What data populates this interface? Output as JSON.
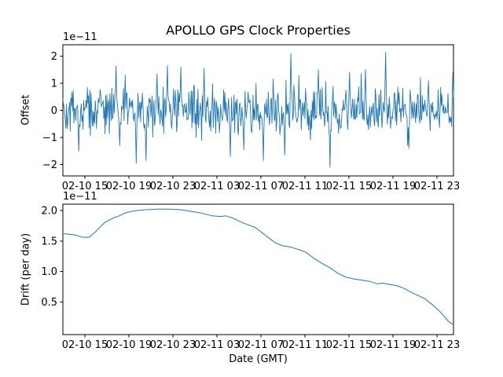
{
  "figure": {
    "background": "#ffffff",
    "line_color": "#1f77b4",
    "axis_color": "#000000"
  },
  "chart_data": [
    {
      "type": "line",
      "name": "offset",
      "title": "APOLLO GPS Clock Properties",
      "ylabel": "Offset",
      "scale_text": "1e−11",
      "grid": false,
      "legend": "none",
      "x_range": [
        13.0,
        48.5
      ],
      "y_range": [
        -2.42,
        2.42
      ],
      "y_tick_values": [
        2,
        1,
        0,
        -1,
        -2
      ],
      "y_tick_labels": [
        "2",
        "1",
        "0",
        "−1",
        "−2"
      ],
      "x_tick_values": [
        15,
        19,
        23,
        27,
        31,
        35,
        39,
        43,
        47
      ],
      "x_tick_labels": [
        "02-10 15",
        "02-10 19",
        "02-10 23",
        "02-11 03",
        "02-11 07",
        "02-11 11",
        "02-11 15",
        "02-11 19",
        "02-11 23"
      ],
      "noise": {
        "n": 640,
        "sigma": 0.43,
        "tail_prob": 0.05,
        "tail_mult": 2.0,
        "clamp": 1.75,
        "seed": 42
      },
      "spikes": [
        [
          14.43,
          -1.5
        ],
        [
          17.86,
          1.63
        ],
        [
          18.14,
          -1.3
        ],
        [
          19.64,
          -1.94
        ],
        [
          20.57,
          -1.85
        ],
        [
          21.57,
          1.35
        ],
        [
          22.5,
          1.65
        ],
        [
          23.71,
          1.6
        ],
        [
          25.86,
          1.55
        ],
        [
          28.21,
          -1.7
        ],
        [
          29.43,
          -1.45
        ],
        [
          31.21,
          -1.85
        ],
        [
          33.14,
          -1.65
        ],
        [
          33.71,
          2.1
        ],
        [
          36.21,
          1.5
        ],
        [
          37.29,
          -2.1
        ],
        [
          39.07,
          1.4
        ],
        [
          40.5,
          1.5
        ],
        [
          42.36,
          2.15
        ],
        [
          44.43,
          -1.4
        ],
        [
          46.21,
          1.1
        ],
        [
          48.43,
          1.4
        ]
      ]
    },
    {
      "type": "line",
      "name": "drift",
      "ylabel": "Drift (per day)",
      "xlabel": "Date (GMT)",
      "scale_text": "1e−11",
      "grid": false,
      "legend": "none",
      "x_range": [
        13.0,
        48.5
      ],
      "y_range": [
        -0.03,
        2.1
      ],
      "y_tick_values": [
        0.5,
        1.0,
        1.5,
        2.0
      ],
      "y_tick_labels": [
        "0.5",
        "1.0",
        "1.5",
        "2.0"
      ],
      "x_tick_values": [
        15,
        19,
        23,
        27,
        31,
        35,
        39,
        43,
        47
      ],
      "x_tick_labels": [
        "02-10 15",
        "02-10 19",
        "02-10 23",
        "02-11 03",
        "02-11 07",
        "02-11 11",
        "02-11 15",
        "02-11 19",
        "02-11 23"
      ],
      "points": [
        [
          13.0,
          1.62
        ],
        [
          14.07,
          1.6
        ],
        [
          14.79,
          1.56
        ],
        [
          15.36,
          1.56
        ],
        [
          15.86,
          1.63
        ],
        [
          16.79,
          1.8
        ],
        [
          17.64,
          1.88
        ],
        [
          18.0,
          1.9
        ],
        [
          18.71,
          1.96
        ],
        [
          19.43,
          1.99
        ],
        [
          20.5,
          2.01
        ],
        [
          21.57,
          2.02
        ],
        [
          22.64,
          2.02
        ],
        [
          23.71,
          2.01
        ],
        [
          24.79,
          1.98
        ],
        [
          25.71,
          1.95
        ],
        [
          26.57,
          1.91
        ],
        [
          27.29,
          1.9
        ],
        [
          27.79,
          1.91
        ],
        [
          28.36,
          1.88
        ],
        [
          29.43,
          1.79
        ],
        [
          30.5,
          1.72
        ],
        [
          31.21,
          1.62
        ],
        [
          31.93,
          1.52
        ],
        [
          32.29,
          1.47
        ],
        [
          33.0,
          1.42
        ],
        [
          33.71,
          1.4
        ],
        [
          34.43,
          1.36
        ],
        [
          35.14,
          1.31
        ],
        [
          35.86,
          1.21
        ],
        [
          36.57,
          1.13
        ],
        [
          37.29,
          1.06
        ],
        [
          38.0,
          0.97
        ],
        [
          38.71,
          0.91
        ],
        [
          39.43,
          0.88
        ],
        [
          40.14,
          0.86
        ],
        [
          40.86,
          0.84
        ],
        [
          41.57,
          0.8
        ],
        [
          42.14,
          0.81
        ],
        [
          42.64,
          0.79
        ],
        [
          43.36,
          0.77
        ],
        [
          44.07,
          0.72
        ],
        [
          44.57,
          0.67
        ],
        [
          45.14,
          0.62
        ],
        [
          45.86,
          0.56
        ],
        [
          46.57,
          0.46
        ],
        [
          47.14,
          0.37
        ],
        [
          47.64,
          0.27
        ],
        [
          48.07,
          0.18
        ],
        [
          48.5,
          0.13
        ]
      ]
    }
  ]
}
